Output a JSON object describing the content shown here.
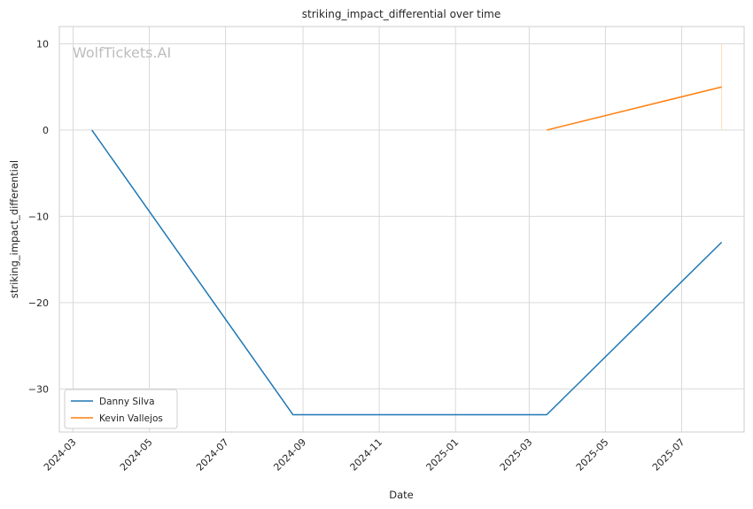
{
  "chart_data": {
    "type": "line",
    "title": "striking_impact_differential over time",
    "xlabel": "Date",
    "ylabel": "striking_impact_differential",
    "watermark": "WolfTickets.AI",
    "x_ticks": [
      "2024-03",
      "2024-05",
      "2024-07",
      "2024-09",
      "2024-11",
      "2025-01",
      "2025-03",
      "2025-05",
      "2025-07"
    ],
    "y_ticks": [
      10,
      0,
      -10,
      -20,
      -30
    ],
    "y_tick_labels": [
      "10",
      "0",
      "−10",
      "−20",
      "−30"
    ],
    "xlim": [
      "2024-02-19",
      "2025-08-20"
    ],
    "ylim": [
      -35,
      12
    ],
    "grid": true,
    "legend_position": "lower-left",
    "series": [
      {
        "name": "Danny Silva",
        "color": "#1f77b4",
        "points": [
          {
            "x": "2024-03-16",
            "y": 0
          },
          {
            "x": "2024-08-24",
            "y": -33
          },
          {
            "x": "2025-03-15",
            "y": -33
          },
          {
            "x": "2025-08-02",
            "y": -13
          }
        ]
      },
      {
        "name": "Kevin Vallejos",
        "color": "#ff7f0e",
        "points": [
          {
            "x": "2025-03-15",
            "y": 0
          },
          {
            "x": "2025-08-02",
            "y": 5
          }
        ]
      }
    ],
    "reference_line": {
      "x": "2025-08-02",
      "y_range": [
        0,
        10
      ],
      "color": "#ffdcb8"
    }
  }
}
